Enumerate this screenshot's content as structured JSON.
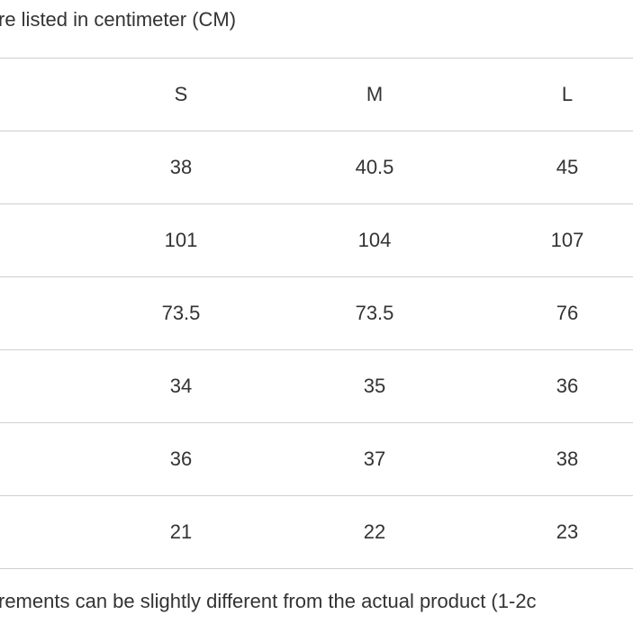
{
  "header": {
    "text": "re listed in centimeter (CM)"
  },
  "table": {
    "columns": [
      "S",
      "M",
      "L"
    ],
    "rows": [
      [
        "38",
        "40.5",
        "45"
      ],
      [
        "101",
        "104",
        "107"
      ],
      [
        "73.5",
        "73.5",
        "76"
      ],
      [
        "34",
        "35",
        "36"
      ],
      [
        "36",
        "37",
        "38"
      ],
      [
        "21",
        "22",
        "23"
      ]
    ]
  },
  "footer": {
    "text": "rements can be slightly different from the actual product (1-2c"
  }
}
